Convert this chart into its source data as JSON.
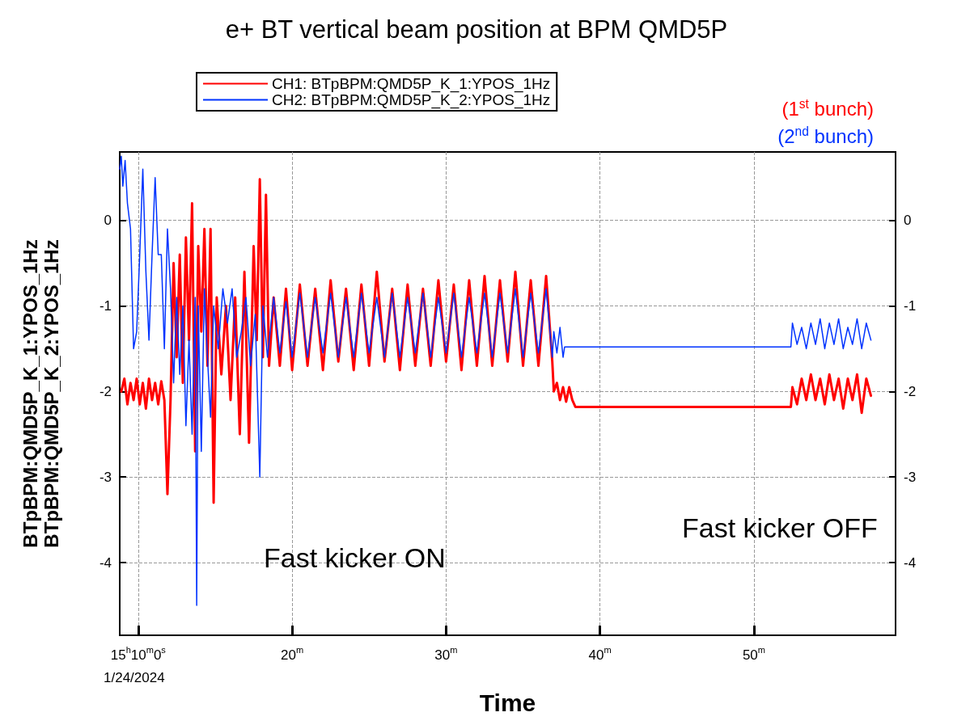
{
  "chart_data": {
    "type": "line",
    "title": "e+ BT vertical beam position at BPM QMD5P",
    "xlabel": "Time",
    "ylabel": "BTpBPM:QMD5P_K_1:YPOS_1Hz\nBTpBPM:QMD5P_K_2:YPOS_1Hz",
    "xlim": [
      8.8,
      59.2
    ],
    "xticks": [
      {
        "value": 10,
        "label": "15$^{h}$10$^{m}$0$^{s}$"
      },
      {
        "value": 20,
        "label": "20$^{m}$"
      },
      {
        "value": 30,
        "label": "30$^{m}$"
      },
      {
        "value": 40,
        "label": "40$^{m}$"
      },
      {
        "value": 50,
        "label": "50$^{m}$"
      }
    ],
    "ylim": [
      -4.85,
      0.8
    ],
    "yticks": [
      -4,
      -3,
      -2,
      -1,
      0
    ],
    "y2lim": [
      -4.85,
      0.8
    ],
    "y2ticks": [
      -4,
      -3,
      -2,
      -1,
      0
    ],
    "grid": true,
    "legend": "top",
    "line_style": "solid",
    "marker": "none",
    "annotations": [
      "(1$^{st}$ bunch)",
      "(2$^{nd}$ bunch)",
      "Fast kicker ON",
      "Fast kicker OFF",
      "1/24/2024"
    ],
    "series": [
      {
        "name": "CH1: BTpBPM:QMD5P_K_1:YPOS_1Hz",
        "color": "#ff0000",
        "x": [
          8.9,
          9.1,
          9.3,
          9.5,
          9.7,
          9.9,
          10.1,
          10.3,
          10.5,
          10.7,
          10.9,
          11.1,
          11.3,
          11.5,
          11.7,
          11.9,
          12.1,
          12.3,
          12.5,
          12.7,
          12.9,
          13.1,
          13.3,
          13.5,
          13.7,
          13.9,
          14.1,
          14.3,
          14.5,
          14.7,
          14.9,
          15.1,
          15.4,
          15.7,
          16.0,
          16.3,
          16.6,
          16.9,
          17.2,
          17.5,
          17.7,
          17.9,
          18.1,
          18.3,
          18.5,
          18.8,
          19.2,
          19.6,
          20.0,
          20.5,
          21.0,
          21.5,
          22.0,
          22.5,
          23.0,
          23.5,
          24.0,
          24.5,
          25.0,
          25.5,
          26.0,
          26.5,
          27.0,
          27.5,
          28.0,
          28.5,
          29.0,
          29.5,
          30.0,
          30.5,
          31.0,
          31.5,
          32.0,
          32.5,
          33.0,
          33.5,
          34.0,
          34.5,
          35.0,
          35.5,
          36.0,
          36.5,
          36.9,
          37.0,
          37.2,
          37.4,
          37.6,
          37.8,
          38.0,
          38.2,
          38.4,
          52.4,
          52.5,
          52.8,
          53.1,
          53.4,
          53.7,
          54.0,
          54.3,
          54.6,
          54.9,
          55.2,
          55.5,
          55.8,
          56.1,
          56.4,
          56.7,
          57.0,
          57.3,
          57.6
        ],
        "values": [
          -2.0,
          -1.85,
          -2.15,
          -1.9,
          -2.1,
          -1.85,
          -2.15,
          -1.9,
          -2.2,
          -1.85,
          -2.1,
          -1.9,
          -2.15,
          -1.88,
          -2.1,
          -3.2,
          -2.1,
          -0.5,
          -1.6,
          -0.4,
          -1.9,
          -0.2,
          -1.4,
          0.2,
          -2.7,
          -0.3,
          -1.3,
          -0.1,
          -1.7,
          -0.1,
          -3.3,
          -0.9,
          -1.8,
          -1.0,
          -2.1,
          -0.9,
          -2.5,
          -0.6,
          -2.6,
          -0.3,
          -1.4,
          0.48,
          -1.6,
          0.3,
          -1.7,
          -0.9,
          -1.7,
          -0.8,
          -1.75,
          -0.75,
          -1.7,
          -0.8,
          -1.75,
          -0.7,
          -1.65,
          -0.8,
          -1.75,
          -0.75,
          -1.7,
          -0.6,
          -1.65,
          -0.8,
          -1.75,
          -0.75,
          -1.7,
          -0.8,
          -1.7,
          -0.7,
          -1.65,
          -0.75,
          -1.75,
          -0.7,
          -1.7,
          -0.65,
          -1.7,
          -0.7,
          -1.65,
          -0.6,
          -1.7,
          -0.7,
          -1.7,
          -0.65,
          -1.65,
          -2.0,
          -1.9,
          -2.1,
          -1.95,
          -2.12,
          -1.95,
          -2.1,
          -2.18,
          -2.18,
          -1.95,
          -2.15,
          -1.85,
          -2.1,
          -1.8,
          -2.1,
          -1.85,
          -2.15,
          -1.8,
          -2.1,
          -1.85,
          -2.2,
          -1.85,
          -2.1,
          -1.8,
          -2.25,
          -1.85,
          -2.05
        ]
      },
      {
        "name": "CH2: BTpBPM:QMD5P_K_2:YPOS_1Hz",
        "color": "#0033ff",
        "x": [
          8.8,
          8.9,
          9.0,
          9.15,
          9.3,
          9.5,
          9.7,
          9.9,
          10.1,
          10.3,
          10.5,
          10.7,
          10.9,
          11.1,
          11.3,
          11.5,
          11.7,
          11.9,
          12.1,
          12.3,
          12.5,
          12.7,
          12.9,
          13.1,
          13.3,
          13.5,
          13.7,
          13.8,
          13.9,
          14.1,
          14.3,
          14.5,
          14.7,
          14.9,
          15.2,
          15.5,
          15.8,
          16.1,
          16.4,
          16.7,
          17.0,
          17.3,
          17.6,
          17.9,
          18.1,
          18.4,
          18.8,
          19.2,
          19.6,
          20.0,
          20.5,
          21.0,
          21.5,
          22.0,
          22.5,
          23.0,
          23.5,
          24.0,
          24.5,
          25.0,
          25.5,
          26.0,
          26.5,
          27.0,
          27.5,
          28.0,
          28.5,
          29.0,
          29.5,
          30.0,
          30.5,
          31.0,
          31.5,
          32.0,
          32.5,
          33.0,
          33.5,
          34.0,
          34.5,
          35.0,
          35.5,
          36.0,
          36.5,
          36.9,
          37.0,
          37.2,
          37.4,
          37.6,
          37.7,
          52.4,
          52.5,
          52.8,
          53.1,
          53.4,
          53.7,
          54.0,
          54.3,
          54.6,
          54.9,
          55.2,
          55.5,
          55.8,
          56.1,
          56.4,
          56.7,
          57.0,
          57.3,
          57.6
        ],
        "values": [
          0.6,
          0.75,
          0.4,
          0.7,
          0.2,
          -0.1,
          -1.5,
          -1.3,
          -0.4,
          0.6,
          -0.6,
          -1.4,
          -0.4,
          0.5,
          -0.4,
          -0.4,
          -1.5,
          -0.1,
          -0.8,
          -1.9,
          -0.9,
          -1.8,
          -1.0,
          -2.4,
          -1.4,
          -2.5,
          -0.9,
          -4.5,
          -1.0,
          -2.7,
          -0.8,
          -1.6,
          -2.3,
          -1.0,
          -1.5,
          -0.8,
          -1.2,
          -0.8,
          -1.6,
          -1.3,
          -0.9,
          -1.7,
          -1.1,
          -3.0,
          -1.0,
          -1.6,
          -0.9,
          -1.55,
          -0.95,
          -1.6,
          -0.85,
          -1.6,
          -0.9,
          -1.55,
          -0.85,
          -1.6,
          -0.9,
          -1.6,
          -0.85,
          -1.55,
          -0.9,
          -1.6,
          -0.85,
          -1.6,
          -0.9,
          -1.55,
          -0.85,
          -1.6,
          -0.9,
          -1.55,
          -0.85,
          -1.6,
          -0.9,
          -1.55,
          -0.85,
          -1.6,
          -0.85,
          -1.55,
          -0.8,
          -1.6,
          -0.85,
          -1.55,
          -0.8,
          -1.6,
          -1.3,
          -1.55,
          -1.25,
          -1.6,
          -1.48,
          -1.48,
          -1.2,
          -1.45,
          -1.25,
          -1.5,
          -1.2,
          -1.45,
          -1.15,
          -1.5,
          -1.2,
          -1.45,
          -1.15,
          -1.5,
          -1.25,
          -1.45,
          -1.15,
          -1.5,
          -1.2,
          -1.4
        ]
      }
    ]
  }
}
